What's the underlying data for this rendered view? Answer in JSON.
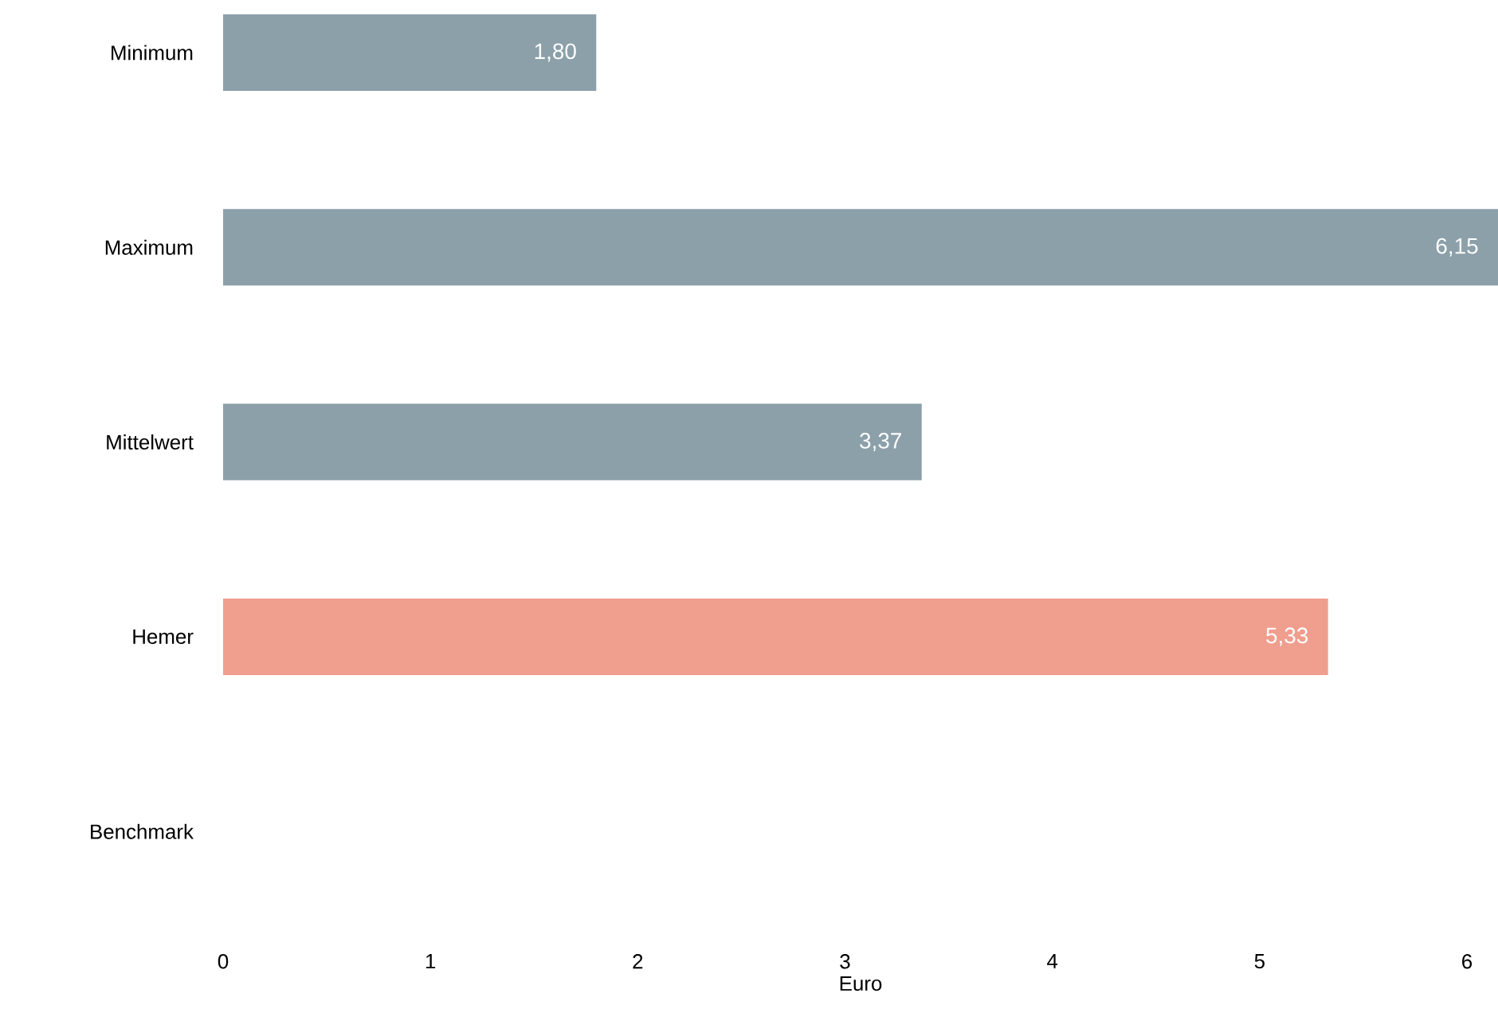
{
  "chart_data": {
    "type": "bar",
    "orientation": "horizontal",
    "categories": [
      "Minimum",
      "Maximum",
      "Mittelwert",
      "Hemer",
      "Benchmark"
    ],
    "values": [
      1.8,
      6.15,
      3.37,
      5.33,
      null
    ],
    "colors": [
      "#8ca0aa",
      "#8ca0aa",
      "#8ca0aa",
      "#f09e8e",
      "#8ca0aa"
    ],
    "value_labels": [
      "1,80",
      "6,15",
      "3,37",
      "5,33",
      null
    ],
    "xlabel": "Euro",
    "xlim": [
      0,
      6.15
    ],
    "xticks": [
      0,
      1,
      2,
      3,
      4,
      5,
      6
    ]
  }
}
